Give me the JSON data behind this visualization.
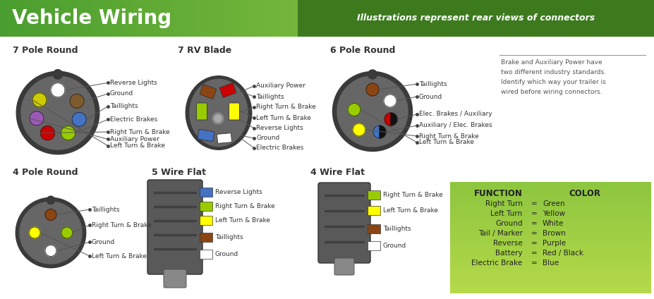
{
  "title": "Vehicle Wiring",
  "subtitle": "Illustrations represent rear views of connectors",
  "header_color_left": "#4a9e2f",
  "header_color_right": "#a8d44a",
  "subtitle_bg": "#3d7a1e",
  "body_bg": "#ffffff",
  "connector_bg": "#606060",
  "connector_outline": "#444444",
  "section_titles": [
    "7 Pole Round",
    "7 RV Blade",
    "6 Pole Round",
    "4 Pole Round",
    "5 Wire Flat",
    "4 Wire Flat"
  ],
  "legend_title1": "FUNCTION",
  "legend_title2": "COLOR",
  "legend_rows": [
    [
      "Right Turn",
      "=",
      "Green"
    ],
    [
      "Left Turn",
      "=",
      "Yellow"
    ],
    [
      "Ground",
      "=",
      "White"
    ],
    [
      "Tail / Marker",
      "=",
      "Brown"
    ],
    [
      "Reverse",
      "=",
      "Purple"
    ],
    [
      "Battery",
      "=",
      "Red / Black"
    ],
    [
      "Electric Brake",
      "=",
      "Blue"
    ]
  ],
  "note_text": "Brake and Auxiliary Power have\ntwo different industry standards.\nIdentify which way your trailer is\nwired before wiring connectors.",
  "pole7_labels": [
    "Reverse Lights",
    "Ground",
    "Taillights",
    "Electric Brakes",
    "Right Turn & Brake",
    "Auxiliary Power",
    "Left Turn & Brake"
  ],
  "pole7_pin_colors": [
    "#ffffff",
    "#7f5c2e",
    "#4472c4",
    "#99cc00",
    "#cc0000",
    "#9b59b6",
    "#cccc00"
  ],
  "rv7_labels": [
    "Auxiliary Power",
    "Taillights",
    "Right Turn & Brake",
    "Left Turn & Brake",
    "Reverse Lights",
    "Ground",
    "Electric Brakes"
  ],
  "rv7_blade_colors": [
    "#8b4513",
    "#cc0000",
    "#99cc00",
    "#ffff00",
    "#4472c4",
    "#ffffff",
    "#4472c4"
  ],
  "pole6_labels": [
    "Taillights",
    "Ground",
    "Elec. Brakes / Auxiliary",
    "Auxiliary / Elec. Brakes",
    "Right Turn & Brake",
    "Left Turn & Brake"
  ],
  "pole6_pin_colors": [
    "#8b4513",
    "#ffffff",
    "#cc0000",
    "#4472c4",
    "#ffff00",
    "#99cc00"
  ],
  "pole4_labels": [
    "Taillights",
    "Right Turn & Brake",
    "Ground",
    "Left Turn & Brake"
  ],
  "pole4_pin_colors": [
    "#8b4513",
    "#99cc00",
    "#ffffff",
    "#ffff00"
  ],
  "wire5_labels": [
    "Reverse Lights",
    "Right Turn & Brake",
    "Left Turn & Brake",
    "Taillights",
    "Ground"
  ],
  "wire5_colors": [
    "#4472c4",
    "#99cc00",
    "#ffff00",
    "#8b4513",
    "#ffffff"
  ],
  "wire4_labels": [
    "Right Turn & Brake",
    "Left Turn & Brake",
    "Taillights",
    "Ground"
  ],
  "wire4_colors": [
    "#99cc00",
    "#ffff00",
    "#8b4513",
    "#ffffff"
  ],
  "legend_bg_top": "#8dc63f",
  "legend_bg_bot": "#b5d94a"
}
